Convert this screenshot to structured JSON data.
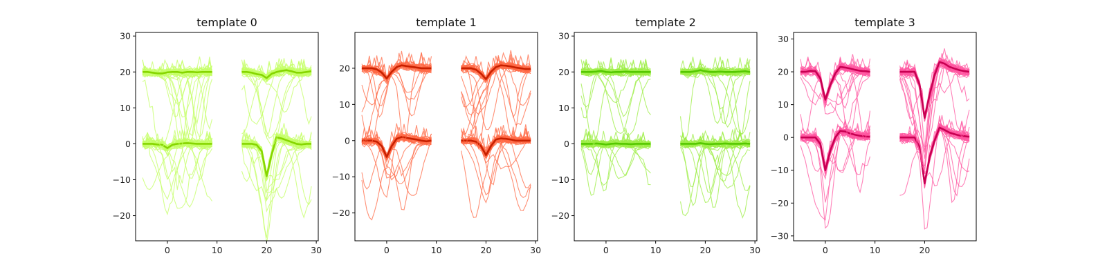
{
  "chart_data": [
    {
      "type": "line",
      "title": "template 0",
      "trace_color": "#c4ff66",
      "mean_color": "#86d600",
      "xlim": [
        -6.4,
        30.4
      ],
      "ylim": [
        -27,
        31
      ],
      "xticks": [
        0,
        10,
        20,
        30
      ],
      "yticks": [
        -20,
        -10,
        0,
        10,
        20,
        30
      ],
      "segments_x": [
        [
          -5,
          9
        ],
        [
          15,
          29
        ]
      ],
      "noise": 1.4,
      "mean": {
        "ch0": [
          [
            0,
            0,
            0,
            -0.2,
            -0.3,
            -1.2,
            -0.3,
            0,
            0.1,
            0.2,
            0.1,
            0,
            0,
            0,
            0
          ],
          [
            0,
            0,
            0,
            -0.3,
            -2,
            -9,
            -3,
            1.8,
            1.5,
            1,
            0.5,
            0,
            -0.2,
            0,
            0
          ]
        ],
        "ch1": [
          [
            20,
            20,
            19.8,
            19.6,
            19.6,
            19.9,
            20,
            20,
            19.8,
            20,
            20,
            19.9,
            20,
            20,
            20
          ],
          [
            20,
            20,
            19.8,
            19.4,
            19.2,
            18.3,
            19.5,
            20,
            20.3,
            20.5,
            20.2,
            19.8,
            19.8,
            20,
            20.2
          ]
        ]
      }
    },
    {
      "type": "line",
      "title": "template 1",
      "trace_color": "#ff6a45",
      "mean_color": "#c82000",
      "xlim": [
        -6.4,
        30.4
      ],
      "ylim": [
        -27.7,
        29.9
      ],
      "xticks": [
        0,
        10,
        20,
        30
      ],
      "yticks": [
        -20,
        -10,
        0,
        10,
        20
      ],
      "segments_x": [
        [
          -5,
          9
        ],
        [
          15,
          29
        ]
      ],
      "noise": 1.3,
      "mean": {
        "ch0": [
          [
            0,
            0,
            0,
            -0.3,
            -1.5,
            -4.5,
            -1.5,
            0.5,
            1,
            0.8,
            0.5,
            0.3,
            0,
            -0.2,
            0
          ],
          [
            0,
            0,
            0,
            -0.3,
            -1.5,
            -4,
            -1.5,
            0.3,
            0.6,
            0.5,
            0.3,
            0,
            0,
            0,
            0
          ]
        ],
        "ch1": [
          [
            20,
            20,
            20,
            19.7,
            18.8,
            17.2,
            19,
            20.3,
            20.8,
            20.6,
            20.4,
            20.2,
            20,
            20,
            20
          ],
          [
            20,
            20,
            20,
            19.6,
            18.5,
            17,
            19,
            20.3,
            20.8,
            20.7,
            20.5,
            20.2,
            20,
            19.8,
            19.8
          ]
        ]
      }
    },
    {
      "type": "line",
      "title": "template 2",
      "trace_color": "#9cee44",
      "mean_color": "#55c800",
      "xlim": [
        -6.4,
        30.4
      ],
      "ylim": [
        -27,
        31
      ],
      "xticks": [
        0,
        10,
        20,
        30
      ],
      "yticks": [
        -20,
        -10,
        0,
        10,
        20,
        30
      ],
      "segments_x": [
        [
          -5,
          9
        ],
        [
          15,
          29
        ]
      ],
      "noise": 1.2,
      "mean": {
        "ch0": [
          [
            0,
            0,
            0,
            0.1,
            0,
            -0.2,
            0,
            0.1,
            0,
            0,
            -0.1,
            0,
            0,
            0,
            0
          ],
          [
            0,
            0,
            0,
            0,
            0.2,
            0,
            -0.1,
            0,
            0,
            0.1,
            0,
            0,
            0,
            0.1,
            0
          ]
        ],
        "ch1": [
          [
            20,
            20,
            20,
            20.1,
            20.3,
            20,
            19.9,
            20,
            20,
            20.1,
            20,
            20,
            20,
            20,
            20
          ],
          [
            20,
            20,
            20,
            20.2,
            20.5,
            20.2,
            20,
            20,
            20.1,
            20,
            20,
            20,
            20.1,
            20.2,
            20
          ]
        ]
      }
    },
    {
      "type": "line",
      "title": "template 3",
      "trace_color": "#ff55a0",
      "mean_color": "#c80052",
      "xlim": [
        -6.4,
        30.4
      ],
      "ylim": [
        -31.5,
        32
      ],
      "xticks": [
        0,
        10,
        20
      ],
      "yticks": [
        -30,
        -20,
        -10,
        0,
        10,
        20,
        30
      ],
      "segments_x": [
        [
          -5,
          9
        ],
        [
          15,
          29
        ]
      ],
      "noise": 1.6,
      "mean": {
        "ch0": [
          [
            0,
            0,
            0,
            0,
            -2,
            -10,
            -4,
            0,
            2,
            1.8,
            1.2,
            0.8,
            0.5,
            0.3,
            0.2
          ],
          [
            0,
            0,
            0,
            0,
            -3,
            -14,
            -6,
            -1,
            3,
            2.3,
            1.5,
            1,
            0.6,
            0.4,
            0.2
          ]
        ],
        "ch1": [
          [
            20,
            20,
            20.3,
            20.2,
            18,
            11.5,
            16,
            19.5,
            21.5,
            21.3,
            21,
            20.6,
            20.3,
            20.2,
            20
          ],
          [
            20,
            20,
            20,
            20,
            16,
            6,
            13,
            19,
            23,
            22.5,
            21.5,
            21,
            20.5,
            20.2,
            20
          ]
        ]
      }
    }
  ]
}
